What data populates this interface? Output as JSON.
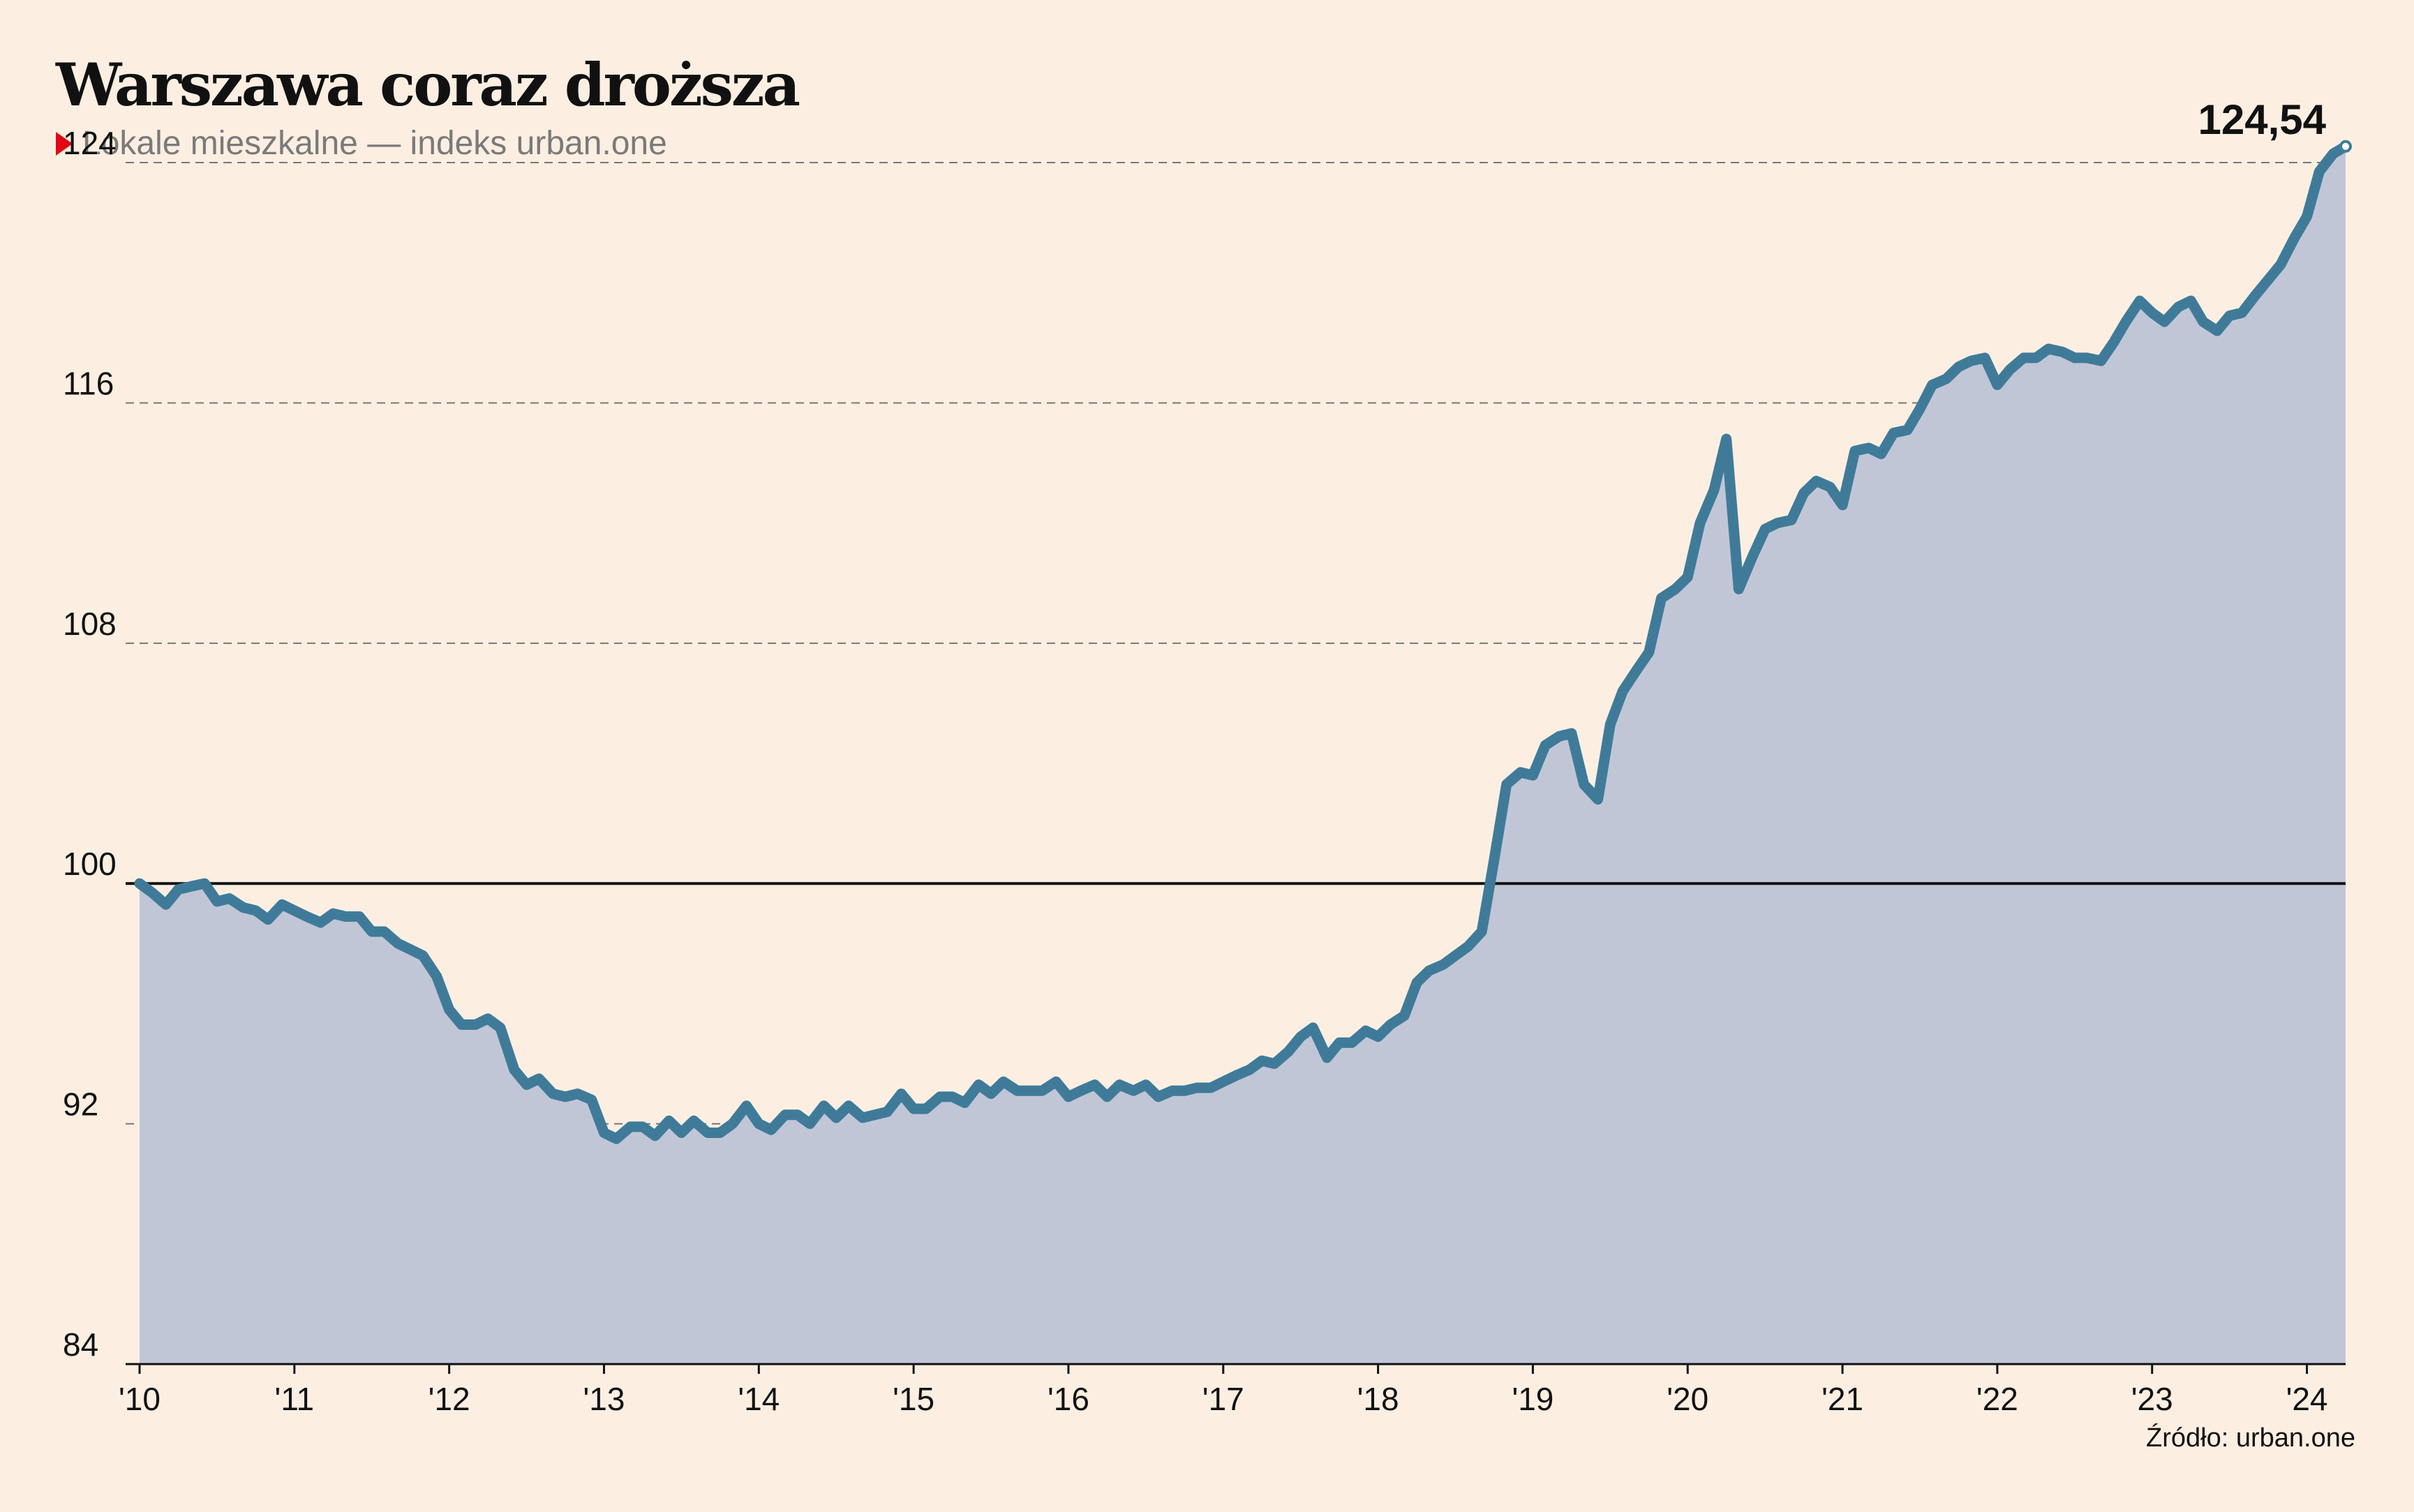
{
  "header": {
    "title": "Warszawa coraz droższa",
    "subtitle": "Lokale mieszkalne — indeks urban.one"
  },
  "footer": {
    "source": "Źródło: urban.one"
  },
  "chart_data": {
    "type": "area",
    "title": "Warszawa coraz droższa",
    "subtitle": "Lokale mieszkalne — indeks urban.one",
    "ylim": [
      84,
      125
    ],
    "yticks": [
      84,
      92,
      100,
      108,
      116,
      124
    ],
    "xlim": [
      2010.0,
      2024.25
    ],
    "xticks": [
      {
        "x": 2010,
        "label": "'10"
      },
      {
        "x": 2011,
        "label": "'11"
      },
      {
        "x": 2012,
        "label": "'12"
      },
      {
        "x": 2013,
        "label": "'13"
      },
      {
        "x": 2014,
        "label": "'14"
      },
      {
        "x": 2015,
        "label": "'15"
      },
      {
        "x": 2016,
        "label": "'16"
      },
      {
        "x": 2017,
        "label": "'17"
      },
      {
        "x": 2018,
        "label": "'18"
      },
      {
        "x": 2019,
        "label": "'19"
      },
      {
        "x": 2020,
        "label": "'20"
      },
      {
        "x": 2021,
        "label": "'21"
      },
      {
        "x": 2022,
        "label": "'22"
      },
      {
        "x": 2023,
        "label": "'23"
      },
      {
        "x": 2024,
        "label": "'24"
      }
    ],
    "reference_line": 100,
    "grid": "horizontal dashed",
    "last_value_label": "124,54",
    "colors": {
      "line": "#3f7b99",
      "area": "#c1c6d7",
      "background": "#fcefe2",
      "marker": "#e30613"
    },
    "x": [
      2010.0,
      2010.08,
      2010.17,
      2010.25,
      2010.33,
      2010.42,
      2010.5,
      2010.58,
      2010.67,
      2010.75,
      2010.83,
      2010.92,
      2011.0,
      2011.08,
      2011.17,
      2011.25,
      2011.33,
      2011.42,
      2011.5,
      2011.58,
      2011.67,
      2011.75,
      2011.83,
      2011.92,
      2012.0,
      2012.08,
      2012.17,
      2012.25,
      2012.33,
      2012.42,
      2012.5,
      2012.58,
      2012.67,
      2012.75,
      2012.83,
      2012.92,
      2013.0,
      2013.08,
      2013.17,
      2013.25,
      2013.33,
      2013.42,
      2013.5,
      2013.58,
      2013.67,
      2013.75,
      2013.83,
      2013.92,
      2014.0,
      2014.08,
      2014.17,
      2014.25,
      2014.33,
      2014.42,
      2014.5,
      2014.58,
      2014.67,
      2014.75,
      2014.83,
      2014.92,
      2015.0,
      2015.08,
      2015.17,
      2015.25,
      2015.33,
      2015.42,
      2015.5,
      2015.58,
      2015.67,
      2015.75,
      2015.83,
      2015.92,
      2016.0,
      2016.08,
      2016.17,
      2016.25,
      2016.33,
      2016.42,
      2016.5,
      2016.58,
      2016.67,
      2016.75,
      2016.83,
      2016.92,
      2017.0,
      2017.08,
      2017.17,
      2017.25,
      2017.33,
      2017.42,
      2017.5,
      2017.58,
      2017.67,
      2017.75,
      2017.83,
      2017.92,
      2018.0,
      2018.08,
      2018.17,
      2018.25,
      2018.33,
      2018.42,
      2018.5,
      2018.58,
      2018.67,
      2018.75,
      2018.83,
      2018.92,
      2019.0,
      2019.08,
      2019.17,
      2019.25,
      2019.33,
      2019.42,
      2019.5,
      2019.58,
      2019.67,
      2019.75,
      2019.83,
      2019.92,
      2020.0,
      2020.08,
      2020.17,
      2020.25,
      2020.33,
      2020.42,
      2020.5,
      2020.58,
      2020.67,
      2020.75,
      2020.83,
      2020.92,
      2021.0,
      2021.08,
      2021.17,
      2021.25,
      2021.33,
      2021.42,
      2021.5,
      2021.58,
      2021.67,
      2021.75,
      2021.83,
      2021.92,
      2022.0,
      2022.08,
      2022.17,
      2022.25,
      2022.33,
      2022.42,
      2022.5,
      2022.58,
      2022.67,
      2022.75,
      2022.83,
      2022.92,
      2023.0,
      2023.08,
      2023.17,
      2023.25,
      2023.33,
      2023.42,
      2023.5,
      2023.58,
      2023.67,
      2023.75,
      2023.83,
      2023.92,
      2024.0,
      2024.08,
      2024.17,
      2024.25
    ],
    "values": [
      100.0,
      99.7,
      99.3,
      99.8,
      99.9,
      100.0,
      99.4,
      99.5,
      99.2,
      99.1,
      98.8,
      99.3,
      99.1,
      98.9,
      98.7,
      99.0,
      98.9,
      98.9,
      98.4,
      98.4,
      98.0,
      97.8,
      97.6,
      96.9,
      95.8,
      95.3,
      95.3,
      95.5,
      95.2,
      93.8,
      93.3,
      93.5,
      93.0,
      92.9,
      93.0,
      92.8,
      91.7,
      91.5,
      91.9,
      91.9,
      91.6,
      92.1,
      91.7,
      92.1,
      91.7,
      91.7,
      92.0,
      92.6,
      92.0,
      91.8,
      92.3,
      92.3,
      92.0,
      92.6,
      92.2,
      92.6,
      92.2,
      92.3,
      92.4,
      93.0,
      92.5,
      92.5,
      92.9,
      92.9,
      92.7,
      93.3,
      93.0,
      93.4,
      93.1,
      93.1,
      93.1,
      93.4,
      92.9,
      93.1,
      93.3,
      92.9,
      93.3,
      93.1,
      93.3,
      92.9,
      93.1,
      93.1,
      93.2,
      93.2,
      93.4,
      93.6,
      93.8,
      94.1,
      94.0,
      94.4,
      94.9,
      95.2,
      94.2,
      94.7,
      94.7,
      95.1,
      94.9,
      95.3,
      95.6,
      96.7,
      97.1,
      97.3,
      97.6,
      97.9,
      98.4,
      100.8,
      103.3,
      103.7,
      103.6,
      104.6,
      104.9,
      105.0,
      103.3,
      102.8,
      105.3,
      106.4,
      107.1,
      107.7,
      109.5,
      109.8,
      110.2,
      112.0,
      113.1,
      114.8,
      109.8,
      110.9,
      111.8,
      112.0,
      112.1,
      113.0,
      113.4,
      113.2,
      112.6,
      114.4,
      114.5,
      114.3,
      115.0,
      115.1,
      115.8,
      116.6,
      116.8,
      117.2,
      117.4,
      117.5,
      116.6,
      117.1,
      117.5,
      117.5,
      117.8,
      117.7,
      117.5,
      117.5,
      117.4,
      118.0,
      118.7,
      119.4,
      119.0,
      118.7,
      119.2,
      119.4,
      118.7,
      118.4,
      118.9,
      119.0,
      119.6,
      120.1,
      120.6,
      121.5,
      122.2,
      123.7,
      124.3,
      124.54
    ]
  }
}
